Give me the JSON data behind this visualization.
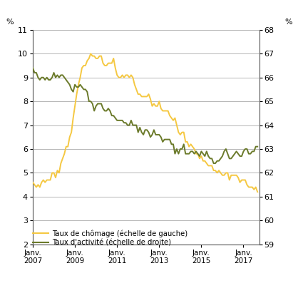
{
  "ylabel_left": "%",
  "ylabel_right": "%",
  "ylim_left": [
    2,
    11
  ],
  "ylim_right": [
    59,
    68
  ],
  "yticks_left": [
    2,
    3,
    4,
    5,
    6,
    7,
    8,
    9,
    10,
    11
  ],
  "yticks_right": [
    59,
    60,
    61,
    62,
    63,
    64,
    65,
    66,
    67,
    68
  ],
  "xtick_labels": [
    "Janv.\n2007",
    "Janv.\n2009",
    "Janv.\n2011",
    "Janv.\n2013",
    "Janv.\n2015",
    "Janv.\n2017"
  ],
  "xtick_positions": [
    2007.0,
    2009.0,
    2011.0,
    2013.0,
    2015.0,
    2017.0
  ],
  "color_unemployment": "#F5C842",
  "color_activity": "#6B7A2A",
  "legend_label_unemployment": "Taux de chômage (échelle de gauche)",
  "legend_label_activity": "Taux d'activité (échelle de droite)",
  "background_color": "#ffffff",
  "grid_color": "#aaaaaa",
  "xlim": [
    2007.0,
    2017.75
  ],
  "unemployment_data": [
    [
      2007.0,
      4.6
    ],
    [
      2007.083,
      4.5
    ],
    [
      2007.167,
      4.4
    ],
    [
      2007.25,
      4.5
    ],
    [
      2007.333,
      4.4
    ],
    [
      2007.417,
      4.6
    ],
    [
      2007.5,
      4.7
    ],
    [
      2007.583,
      4.6
    ],
    [
      2007.667,
      4.7
    ],
    [
      2007.75,
      4.7
    ],
    [
      2007.833,
      4.7
    ],
    [
      2007.917,
      5.0
    ],
    [
      2008.0,
      5.0
    ],
    [
      2008.083,
      4.8
    ],
    [
      2008.167,
      5.1
    ],
    [
      2008.25,
      5.0
    ],
    [
      2008.333,
      5.4
    ],
    [
      2008.417,
      5.6
    ],
    [
      2008.5,
      5.8
    ],
    [
      2008.583,
      6.1
    ],
    [
      2008.667,
      6.1
    ],
    [
      2008.75,
      6.5
    ],
    [
      2008.833,
      6.7
    ],
    [
      2008.917,
      7.3
    ],
    [
      2009.0,
      7.8
    ],
    [
      2009.083,
      8.3
    ],
    [
      2009.167,
      8.7
    ],
    [
      2009.25,
      9.0
    ],
    [
      2009.333,
      9.4
    ],
    [
      2009.417,
      9.5
    ],
    [
      2009.5,
      9.5
    ],
    [
      2009.583,
      9.7
    ],
    [
      2009.667,
      9.8
    ],
    [
      2009.75,
      10.0
    ],
    [
      2009.833,
      9.9
    ],
    [
      2009.917,
      9.9
    ],
    [
      2010.0,
      9.8
    ],
    [
      2010.083,
      9.8
    ],
    [
      2010.167,
      9.9
    ],
    [
      2010.25,
      9.9
    ],
    [
      2010.333,
      9.6
    ],
    [
      2010.417,
      9.5
    ],
    [
      2010.5,
      9.5
    ],
    [
      2010.583,
      9.6
    ],
    [
      2010.667,
      9.6
    ],
    [
      2010.75,
      9.6
    ],
    [
      2010.833,
      9.8
    ],
    [
      2010.917,
      9.4
    ],
    [
      2011.0,
      9.1
    ],
    [
      2011.083,
      9.0
    ],
    [
      2011.167,
      9.0
    ],
    [
      2011.25,
      9.1
    ],
    [
      2011.333,
      9.0
    ],
    [
      2011.417,
      9.1
    ],
    [
      2011.5,
      9.1
    ],
    [
      2011.583,
      9.0
    ],
    [
      2011.667,
      9.1
    ],
    [
      2011.75,
      9.0
    ],
    [
      2011.833,
      8.7
    ],
    [
      2011.917,
      8.5
    ],
    [
      2012.0,
      8.3
    ],
    [
      2012.083,
      8.3
    ],
    [
      2012.167,
      8.2
    ],
    [
      2012.25,
      8.2
    ],
    [
      2012.333,
      8.2
    ],
    [
      2012.417,
      8.2
    ],
    [
      2012.5,
      8.3
    ],
    [
      2012.583,
      8.1
    ],
    [
      2012.667,
      7.8
    ],
    [
      2012.75,
      7.9
    ],
    [
      2012.833,
      7.8
    ],
    [
      2012.917,
      7.8
    ],
    [
      2013.0,
      8.0
    ],
    [
      2013.083,
      7.7
    ],
    [
      2013.167,
      7.6
    ],
    [
      2013.25,
      7.6
    ],
    [
      2013.333,
      7.6
    ],
    [
      2013.417,
      7.6
    ],
    [
      2013.5,
      7.4
    ],
    [
      2013.583,
      7.3
    ],
    [
      2013.667,
      7.2
    ],
    [
      2013.75,
      7.3
    ],
    [
      2013.833,
      7.0
    ],
    [
      2013.917,
      6.7
    ],
    [
      2014.0,
      6.6
    ],
    [
      2014.083,
      6.7
    ],
    [
      2014.167,
      6.7
    ],
    [
      2014.25,
      6.3
    ],
    [
      2014.333,
      6.3
    ],
    [
      2014.417,
      6.1
    ],
    [
      2014.5,
      6.2
    ],
    [
      2014.583,
      6.1
    ],
    [
      2014.667,
      6.0
    ],
    [
      2014.75,
      5.8
    ],
    [
      2014.833,
      5.8
    ],
    [
      2014.917,
      5.6
    ],
    [
      2015.0,
      5.7
    ],
    [
      2015.083,
      5.5
    ],
    [
      2015.167,
      5.5
    ],
    [
      2015.25,
      5.4
    ],
    [
      2015.333,
      5.3
    ],
    [
      2015.417,
      5.3
    ],
    [
      2015.5,
      5.3
    ],
    [
      2015.583,
      5.1
    ],
    [
      2015.667,
      5.1
    ],
    [
      2015.75,
      5.0
    ],
    [
      2015.833,
      5.1
    ],
    [
      2015.917,
      5.0
    ],
    [
      2016.0,
      4.9
    ],
    [
      2016.083,
      4.9
    ],
    [
      2016.167,
      5.0
    ],
    [
      2016.25,
      5.0
    ],
    [
      2016.333,
      4.7
    ],
    [
      2016.417,
      4.9
    ],
    [
      2016.5,
      4.9
    ],
    [
      2016.583,
      4.9
    ],
    [
      2016.667,
      4.9
    ],
    [
      2016.75,
      4.8
    ],
    [
      2016.833,
      4.6
    ],
    [
      2016.917,
      4.7
    ],
    [
      2017.0,
      4.7
    ],
    [
      2017.083,
      4.7
    ],
    [
      2017.167,
      4.5
    ],
    [
      2017.25,
      4.4
    ],
    [
      2017.333,
      4.4
    ],
    [
      2017.417,
      4.4
    ],
    [
      2017.5,
      4.3
    ],
    [
      2017.583,
      4.4
    ],
    [
      2017.667,
      4.2
    ]
  ],
  "activity_data": [
    [
      2007.0,
      66.4
    ],
    [
      2007.083,
      66.2
    ],
    [
      2007.167,
      66.2
    ],
    [
      2007.25,
      66.0
    ],
    [
      2007.333,
      65.9
    ],
    [
      2007.417,
      66.0
    ],
    [
      2007.5,
      66.0
    ],
    [
      2007.583,
      65.9
    ],
    [
      2007.667,
      66.0
    ],
    [
      2007.75,
      65.9
    ],
    [
      2007.833,
      65.9
    ],
    [
      2007.917,
      66.0
    ],
    [
      2008.0,
      66.2
    ],
    [
      2008.083,
      66.0
    ],
    [
      2008.167,
      66.1
    ],
    [
      2008.25,
      66.0
    ],
    [
      2008.333,
      66.1
    ],
    [
      2008.417,
      66.1
    ],
    [
      2008.5,
      66.0
    ],
    [
      2008.583,
      65.9
    ],
    [
      2008.667,
      65.8
    ],
    [
      2008.75,
      65.7
    ],
    [
      2008.833,
      65.5
    ],
    [
      2008.917,
      65.4
    ],
    [
      2009.0,
      65.7
    ],
    [
      2009.083,
      65.6
    ],
    [
      2009.167,
      65.6
    ],
    [
      2009.25,
      65.7
    ],
    [
      2009.333,
      65.6
    ],
    [
      2009.417,
      65.5
    ],
    [
      2009.5,
      65.5
    ],
    [
      2009.583,
      65.4
    ],
    [
      2009.667,
      65.0
    ],
    [
      2009.75,
      65.0
    ],
    [
      2009.833,
      64.9
    ],
    [
      2009.917,
      64.6
    ],
    [
      2010.0,
      64.8
    ],
    [
      2010.083,
      64.9
    ],
    [
      2010.167,
      64.9
    ],
    [
      2010.25,
      64.9
    ],
    [
      2010.333,
      64.7
    ],
    [
      2010.417,
      64.6
    ],
    [
      2010.5,
      64.6
    ],
    [
      2010.583,
      64.7
    ],
    [
      2010.667,
      64.6
    ],
    [
      2010.75,
      64.4
    ],
    [
      2010.833,
      64.4
    ],
    [
      2010.917,
      64.3
    ],
    [
      2011.0,
      64.2
    ],
    [
      2011.083,
      64.2
    ],
    [
      2011.167,
      64.2
    ],
    [
      2011.25,
      64.2
    ],
    [
      2011.333,
      64.1
    ],
    [
      2011.417,
      64.1
    ],
    [
      2011.5,
      64.0
    ],
    [
      2011.583,
      64.0
    ],
    [
      2011.667,
      64.2
    ],
    [
      2011.75,
      64.0
    ],
    [
      2011.833,
      64.0
    ],
    [
      2011.917,
      64.0
    ],
    [
      2012.0,
      63.7
    ],
    [
      2012.083,
      63.9
    ],
    [
      2012.167,
      63.7
    ],
    [
      2012.25,
      63.6
    ],
    [
      2012.333,
      63.8
    ],
    [
      2012.417,
      63.8
    ],
    [
      2012.5,
      63.7
    ],
    [
      2012.583,
      63.5
    ],
    [
      2012.667,
      63.6
    ],
    [
      2012.75,
      63.8
    ],
    [
      2012.833,
      63.6
    ],
    [
      2012.917,
      63.6
    ],
    [
      2013.0,
      63.6
    ],
    [
      2013.083,
      63.5
    ],
    [
      2013.167,
      63.3
    ],
    [
      2013.25,
      63.4
    ],
    [
      2013.333,
      63.4
    ],
    [
      2013.417,
      63.4
    ],
    [
      2013.5,
      63.4
    ],
    [
      2013.583,
      63.2
    ],
    [
      2013.667,
      63.2
    ],
    [
      2013.75,
      62.8
    ],
    [
      2013.833,
      63.0
    ],
    [
      2013.917,
      62.8
    ],
    [
      2014.0,
      63.0
    ],
    [
      2014.083,
      63.0
    ],
    [
      2014.167,
      63.2
    ],
    [
      2014.25,
      62.8
    ],
    [
      2014.333,
      62.8
    ],
    [
      2014.417,
      62.8
    ],
    [
      2014.5,
      62.9
    ],
    [
      2014.583,
      62.9
    ],
    [
      2014.667,
      62.8
    ],
    [
      2014.75,
      62.9
    ],
    [
      2014.833,
      62.8
    ],
    [
      2014.917,
      62.7
    ],
    [
      2015.0,
      62.9
    ],
    [
      2015.083,
      62.8
    ],
    [
      2015.167,
      62.7
    ],
    [
      2015.25,
      62.9
    ],
    [
      2015.333,
      62.7
    ],
    [
      2015.417,
      62.6
    ],
    [
      2015.5,
      62.6
    ],
    [
      2015.583,
      62.4
    ],
    [
      2015.667,
      62.4
    ],
    [
      2015.75,
      62.5
    ],
    [
      2015.833,
      62.5
    ],
    [
      2015.917,
      62.6
    ],
    [
      2016.0,
      62.7
    ],
    [
      2016.083,
      62.9
    ],
    [
      2016.167,
      63.0
    ],
    [
      2016.25,
      62.8
    ],
    [
      2016.333,
      62.6
    ],
    [
      2016.417,
      62.6
    ],
    [
      2016.5,
      62.7
    ],
    [
      2016.583,
      62.8
    ],
    [
      2016.667,
      62.9
    ],
    [
      2016.75,
      62.8
    ],
    [
      2016.833,
      62.7
    ],
    [
      2016.917,
      62.7
    ],
    [
      2017.0,
      62.9
    ],
    [
      2017.083,
      63.0
    ],
    [
      2017.167,
      63.0
    ],
    [
      2017.25,
      62.8
    ],
    [
      2017.333,
      62.8
    ],
    [
      2017.417,
      62.9
    ],
    [
      2017.5,
      62.9
    ],
    [
      2017.583,
      63.1
    ],
    [
      2017.667,
      63.1
    ]
  ]
}
